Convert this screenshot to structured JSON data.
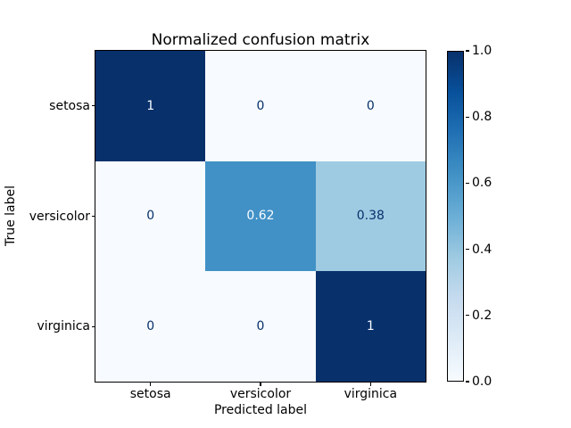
{
  "chart_data": {
    "type": "heatmap",
    "title": "Normalized confusion matrix",
    "xlabel": "Predicted label",
    "ylabel": "True label",
    "categories": [
      "setosa",
      "versicolor",
      "virginica"
    ],
    "matrix": [
      [
        1,
        0,
        0
      ],
      [
        0,
        0.62,
        0.38
      ],
      [
        0,
        0,
        1
      ]
    ],
    "cell_labels": [
      [
        "1",
        "0",
        "0"
      ],
      [
        "0",
        "0.62",
        "0.38"
      ],
      [
        "0",
        "0",
        "1"
      ]
    ],
    "cell_colors": [
      [
        "#08306b",
        "#f7fbff",
        "#f7fbff"
      ],
      [
        "#f7fbff",
        "#4191c6",
        "#9ecbe2"
      ],
      [
        "#f7fbff",
        "#f7fbff",
        "#08306b"
      ]
    ],
    "cell_text_colors": [
      [
        "#f7fbff",
        "#08306b",
        "#08306b"
      ],
      [
        "#08306b",
        "#f7fbff",
        "#08306b"
      ],
      [
        "#08306b",
        "#08306b",
        "#f7fbff"
      ]
    ],
    "colormap": "Blues",
    "grid": false,
    "colorbar": {
      "ticks": [
        "1.0",
        "0.8",
        "0.6",
        "0.4",
        "0.2",
        "0.0"
      ],
      "range": [
        0.0,
        1.0
      ],
      "gradient_stops_bottom_to_top": [
        "#f7fbff",
        "#deebf7",
        "#c6dbef",
        "#9ecae1",
        "#6baed6",
        "#4292c6",
        "#2171b5",
        "#08519c",
        "#08306b"
      ]
    }
  }
}
